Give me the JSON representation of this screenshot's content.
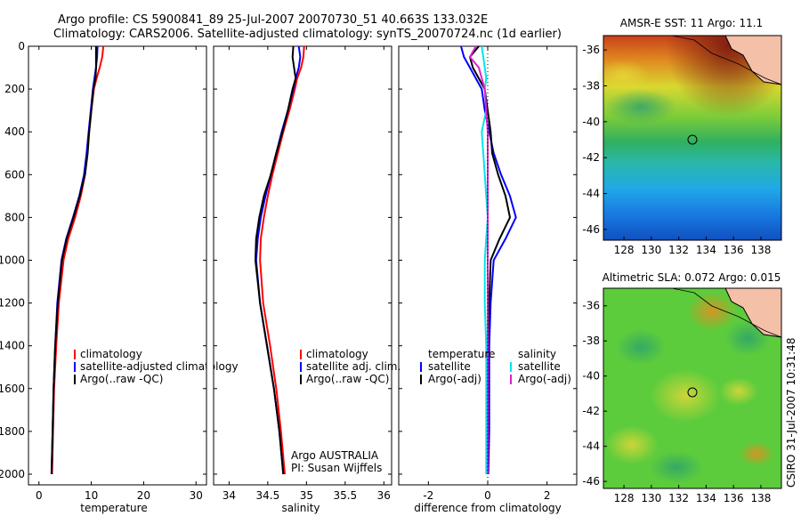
{
  "figure": {
    "title_line1": "Argo profile: CS 5900841_89 25-Jul-2007 20070730_51 40.663S 133.032E",
    "title_line2": "Climatology: CARS2006. Satellite-adjusted climatology: synTS_20070724.nc (1d earlier)",
    "credit": "CSIRO 31-Jul-2007 10:31:48",
    "annotation_line1": "Argo AUSTRALIA",
    "annotation_line2": "PI: Susan Wijffels"
  },
  "colors": {
    "climatology": "#ff0000",
    "satellite": "#0000ff",
    "argo": "#000000",
    "satellite_diff_salinity": "#00e5ee",
    "argo_diff_salinity": "#e020d0"
  },
  "chart_data": [
    {
      "type": "line",
      "id": "temperature",
      "title": "",
      "xlabel": "temperature",
      "ylabel": "",
      "xlim": [
        -2,
        32
      ],
      "ylim": [
        2050,
        0
      ],
      "xticks": [
        0,
        10,
        20,
        30
      ],
      "yticks": [
        0,
        200,
        400,
        600,
        800,
        1000,
        1200,
        1400,
        1600,
        1800,
        2000
      ],
      "y": [
        0,
        50,
        100,
        150,
        200,
        300,
        400,
        500,
        600,
        700,
        800,
        900,
        1000,
        1200,
        1400,
        1600,
        1800,
        2000
      ],
      "series": [
        {
          "name": "climatology",
          "color": "#ff0000",
          "values": [
            12.3,
            12.1,
            11.6,
            11.0,
            10.5,
            10.0,
            9.6,
            9.2,
            8.8,
            8.0,
            6.9,
            5.6,
            4.7,
            3.8,
            3.3,
            2.9,
            2.7,
            2.5
          ]
        },
        {
          "name": "satellite-adjusted climatology",
          "color": "#0000ff",
          "values": [
            11.2,
            11.1,
            10.9,
            10.6,
            10.3,
            9.9,
            9.5,
            9.1,
            8.6,
            7.7,
            6.5,
            5.2,
            4.3,
            3.5,
            3.1,
            2.8,
            2.6,
            2.4
          ]
        },
        {
          "name": "Argo(..raw -QC)",
          "color": "#000000",
          "values": [
            10.9,
            10.9,
            10.9,
            10.8,
            10.4,
            10.0,
            9.6,
            9.3,
            8.8,
            7.8,
            6.6,
            5.3,
            4.4,
            3.6,
            3.1,
            2.8,
            2.6,
            2.4
          ]
        }
      ],
      "legend": [
        "climatology",
        "satellite-adjusted climatology",
        "Argo(..raw -QC)"
      ]
    },
    {
      "type": "line",
      "id": "salinity",
      "title": "",
      "xlabel": "salinity",
      "ylabel": "",
      "xlim": [
        33.8,
        36.1
      ],
      "ylim": [
        2050,
        0
      ],
      "xticks": [
        34,
        34.5,
        35,
        35.5,
        36
      ],
      "y": [
        0,
        50,
        100,
        150,
        200,
        300,
        400,
        500,
        600,
        700,
        800,
        900,
        1000,
        1200,
        1400,
        1600,
        1800,
        2000
      ],
      "series": [
        {
          "name": "climatology",
          "color": "#ff0000",
          "values": [
            34.97,
            34.96,
            34.93,
            34.88,
            34.85,
            34.78,
            34.7,
            34.63,
            34.56,
            34.5,
            34.45,
            34.41,
            34.4,
            34.44,
            34.53,
            34.61,
            34.67,
            34.72
          ]
        },
        {
          "name": "satellite adj. clim.",
          "color": "#0000ff",
          "values": [
            34.9,
            34.92,
            34.9,
            34.86,
            34.83,
            34.76,
            34.68,
            34.61,
            34.54,
            34.47,
            34.41,
            34.37,
            34.35,
            34.4,
            34.49,
            34.58,
            34.65,
            34.7
          ]
        },
        {
          "name": "Argo(..raw -QC)",
          "color": "#000000",
          "values": [
            34.83,
            34.82,
            34.84,
            34.86,
            34.82,
            34.76,
            34.69,
            34.61,
            34.54,
            34.45,
            34.39,
            34.35,
            34.34,
            34.4,
            34.49,
            34.58,
            34.65,
            34.7
          ]
        }
      ],
      "legend": [
        "climatology",
        "satellite adj. clim.",
        "Argo(..raw -QC)"
      ]
    },
    {
      "type": "line",
      "id": "difference",
      "title": "",
      "xlabel": "difference from climatology",
      "ylabel": "",
      "xlim": [
        -3,
        3
      ],
      "ylim": [
        2050,
        0
      ],
      "xticks": [
        -2,
        0,
        2
      ],
      "y": [
        0,
        50,
        100,
        150,
        200,
        300,
        400,
        500,
        600,
        700,
        800,
        900,
        1000,
        1200,
        1400,
        1600,
        1800,
        2000
      ],
      "legend_headers": [
        "temperature",
        "salinity"
      ],
      "series": [
        {
          "name": "satellite",
          "group": "temperature",
          "color": "#0000ff",
          "values": [
            -0.9,
            -0.8,
            -0.6,
            -0.4,
            -0.2,
            -0.1,
            0.05,
            0.2,
            0.45,
            0.75,
            0.95,
            0.6,
            0.2,
            0.1,
            0.05,
            0.05,
            0.05,
            0.02
          ]
        },
        {
          "name": "Argo(-adj)",
          "group": "temperature",
          "color": "#000000",
          "values": [
            -0.3,
            -0.6,
            -0.5,
            -0.3,
            -0.1,
            0.0,
            0.1,
            0.15,
            0.35,
            0.6,
            0.75,
            0.4,
            0.1,
            0.05,
            0.0,
            0.0,
            0.0,
            0.0
          ]
        },
        {
          "name": "satellite",
          "group": "salinity",
          "color": "#00e5ee",
          "values": [
            -0.2,
            -0.15,
            -0.1,
            -0.05,
            -0.1,
            -0.05,
            -0.2,
            -0.15,
            -0.1,
            -0.05,
            0.0,
            -0.05,
            -0.1,
            -0.1,
            -0.05,
            -0.05,
            -0.05,
            -0.05
          ]
        },
        {
          "name": "Argo(-adj)",
          "group": "salinity",
          "color": "#e020d0",
          "values": [
            -0.4,
            -0.6,
            -0.3,
            -0.2,
            -0.1,
            -0.05,
            0.0,
            0.0,
            0.0,
            0.0,
            0.0,
            0.0,
            0.0,
            0.0,
            0.0,
            0.0,
            0.0,
            0.0
          ]
        }
      ]
    },
    {
      "type": "heatmap",
      "id": "sst-map",
      "title": "AMSR-E SST: 11  Argo: 11.1",
      "xlabel": "",
      "ylabel": "",
      "xlim": [
        126.5,
        139.5
      ],
      "ylim": [
        -46.6,
        -35.2
      ],
      "xticks": [
        128,
        130,
        132,
        134,
        136,
        138
      ],
      "yticks": [
        -36,
        -38,
        -40,
        -42,
        -44,
        -46
      ],
      "marker": {
        "lon": 133.032,
        "lat": -40.663
      }
    },
    {
      "type": "heatmap",
      "id": "sla-map",
      "title": "Altimetric SLA: 0.072  Argo: 0.015",
      "xlabel": "",
      "ylabel": "",
      "xlim": [
        126.5,
        139.5
      ],
      "ylim": [
        -46.4,
        -35.0
      ],
      "xticks": [
        128,
        130,
        132,
        134,
        136,
        138
      ],
      "yticks": [
        -36,
        -38,
        -40,
        -42,
        -44,
        -46
      ],
      "marker": {
        "lon": 133.032,
        "lat": -40.663
      }
    }
  ]
}
